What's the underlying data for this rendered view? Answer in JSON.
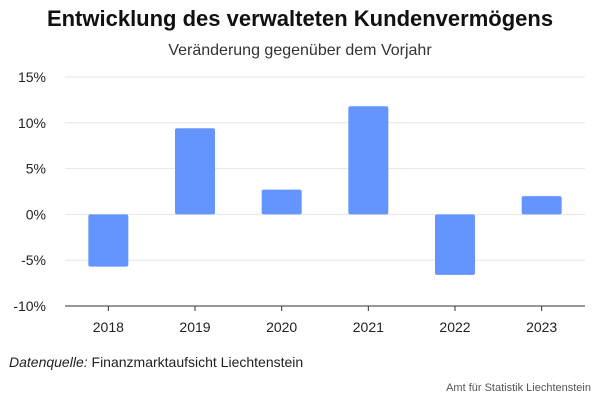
{
  "chart_data": {
    "type": "bar",
    "title": "Entwicklung des verwalteten Kundenvermögens",
    "subtitle": "Veränderung gegenüber dem Vorjahr",
    "categories": [
      "2018",
      "2019",
      "2020",
      "2021",
      "2022",
      "2023"
    ],
    "values": [
      -5.7,
      9.4,
      2.7,
      11.8,
      -6.6,
      2.0
    ],
    "ylim": [
      -10,
      15
    ],
    "yticks": [
      -10,
      -5,
      0,
      5,
      10,
      15
    ],
    "ytick_labels": [
      "-10%",
      "-5%",
      "0%",
      "5%",
      "10%",
      "15%"
    ],
    "xlabel": "",
    "ylabel": "",
    "grid": true,
    "bar_color": "#6495ff"
  },
  "source": {
    "label": "Datenquelle:",
    "text": "Finanzmarktaufsicht Liechtenstein"
  },
  "footer": "Amt für Statistik Liechtenstein"
}
